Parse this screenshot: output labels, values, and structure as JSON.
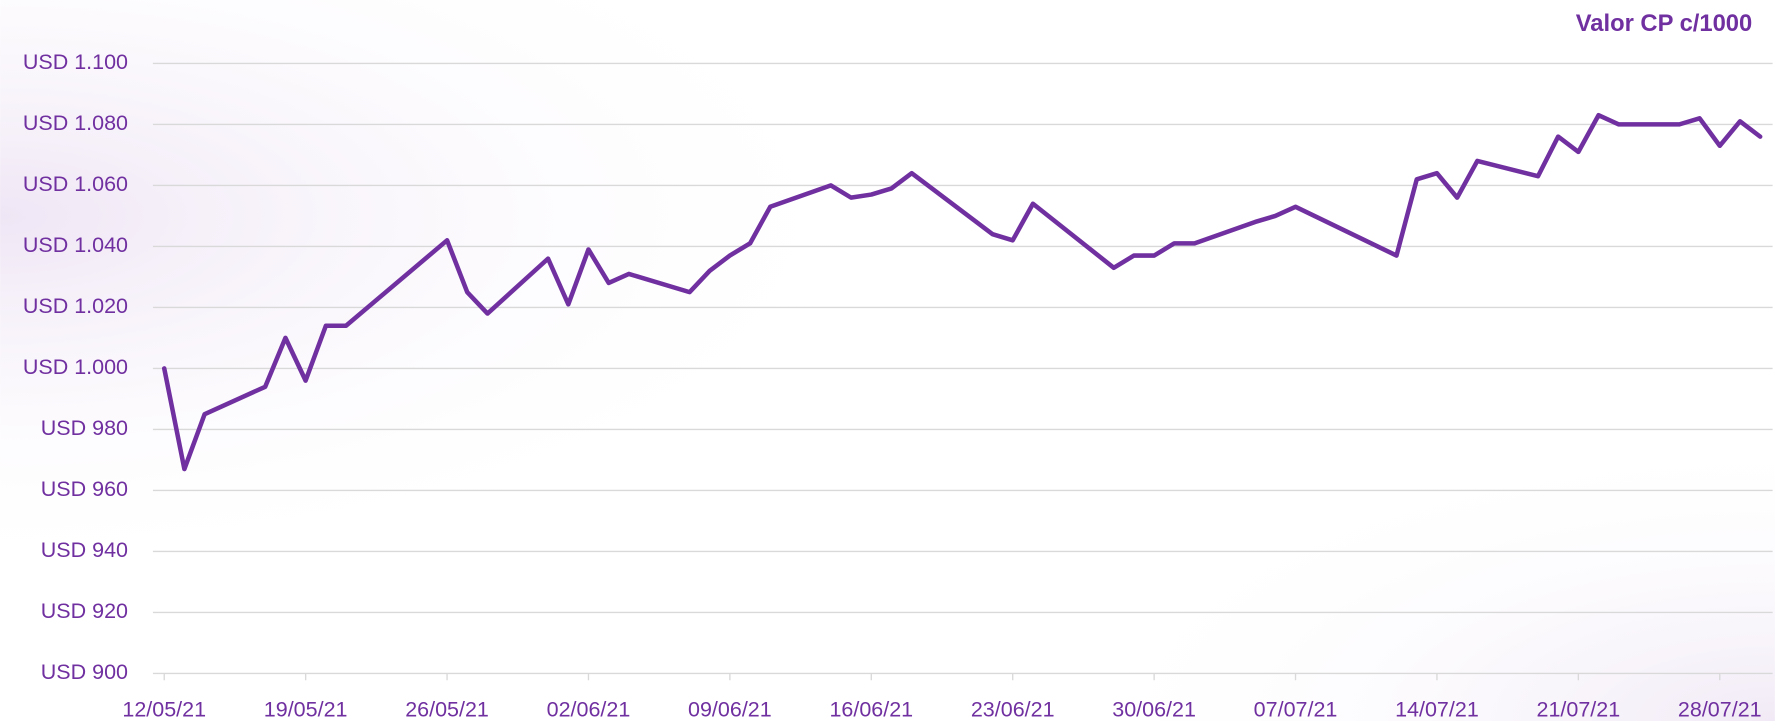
{
  "chart_data": {
    "type": "line",
    "title": "Valor CP c/1000",
    "x": [
      "12/05/21",
      "13/05/21",
      "14/05/21",
      "17/05/21",
      "18/05/21",
      "19/05/21",
      "20/05/21",
      "21/05/21",
      "26/05/21",
      "27/05/21",
      "28/05/21",
      "31/05/21",
      "01/06/21",
      "02/06/21",
      "03/06/21",
      "04/06/21",
      "07/06/21",
      "08/06/21",
      "09/06/21",
      "10/06/21",
      "11/06/21",
      "14/06/21",
      "15/06/21",
      "16/06/21",
      "17/06/21",
      "18/06/21",
      "22/06/21",
      "23/06/21",
      "24/06/21",
      "28/06/21",
      "29/06/21",
      "30/06/21",
      "01/07/21",
      "02/07/21",
      "05/07/21",
      "06/07/21",
      "07/07/21",
      "12/07/21",
      "13/07/21",
      "14/07/21",
      "15/07/21",
      "16/07/21",
      "19/07/21",
      "20/07/21",
      "21/07/21",
      "22/07/21",
      "23/07/21",
      "26/07/21",
      "27/07/21",
      "28/07/21",
      "29/07/21",
      "30/07/21"
    ],
    "series": [
      {
        "name": "Valor CP c/1000",
        "color": "#7030a0",
        "values": [
          1000,
          967,
          985,
          994,
          1010,
          996,
          1014,
          1014,
          1042,
          1025,
          1018,
          1036,
          1021,
          1039,
          1028,
          1031,
          1025,
          1032,
          1037,
          1041,
          1053,
          1060,
          1056,
          1057,
          1059,
          1064,
          1044,
          1042,
          1054,
          1033,
          1037,
          1037,
          1041,
          1041,
          1048,
          1050,
          1053,
          1037,
          1062,
          1064,
          1056,
          1068,
          1063,
          1076,
          1071,
          1083,
          1080,
          1080,
          1082,
          1073,
          1081,
          1076
        ]
      }
    ],
    "xlim": [
      "12/05/21",
      "30/07/21"
    ],
    "xticks": [
      "12/05/21",
      "19/05/21",
      "26/05/21",
      "02/06/21",
      "09/06/21",
      "16/06/21",
      "23/06/21",
      "30/06/21",
      "07/07/21",
      "14/07/21",
      "21/07/21",
      "28/07/21"
    ],
    "ylim": [
      900,
      1100
    ],
    "yticks": [
      {
        "value": 900,
        "label": "USD 900"
      },
      {
        "value": 920,
        "label": "USD 920"
      },
      {
        "value": 940,
        "label": "USD 940"
      },
      {
        "value": 960,
        "label": "USD 960"
      },
      {
        "value": 980,
        "label": "USD 980"
      },
      {
        "value": 1000,
        "label": "USD 1.000"
      },
      {
        "value": 1020,
        "label": "USD 1.020"
      },
      {
        "value": 1040,
        "label": "USD 1.040"
      },
      {
        "value": 1060,
        "label": "USD 1.060"
      },
      {
        "value": 1080,
        "label": "USD 1.080"
      },
      {
        "value": 1100,
        "label": "USD 1.100"
      }
    ],
    "grid": true
  }
}
